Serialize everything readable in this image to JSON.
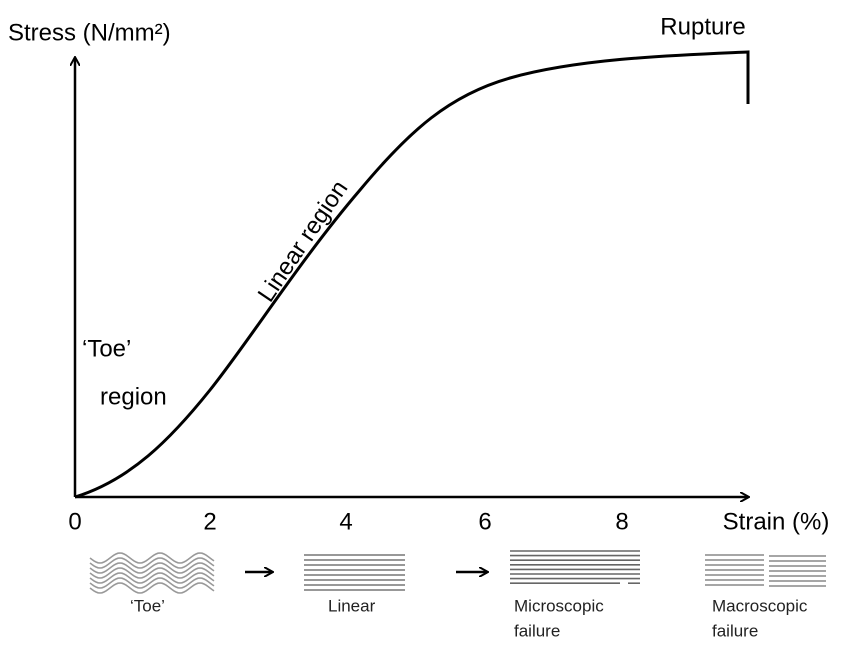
{
  "axes": {
    "y_label": "Stress (N/mm²)",
    "x_label": "Strain (%)",
    "x_ticks": [
      "0",
      "2",
      "4",
      "6",
      "8"
    ]
  },
  "annotations": {
    "rupture": "Rupture",
    "toe_region": [
      "‘Toe’",
      "region"
    ],
    "linear_region": "Linear region"
  },
  "stages": [
    {
      "label": [
        "‘Toe’"
      ]
    },
    {
      "label": [
        "Linear"
      ]
    },
    {
      "label": [
        "Microscopic",
        "failure"
      ]
    },
    {
      "label": [
        "Macroscopic",
        "failure"
      ]
    }
  ]
}
